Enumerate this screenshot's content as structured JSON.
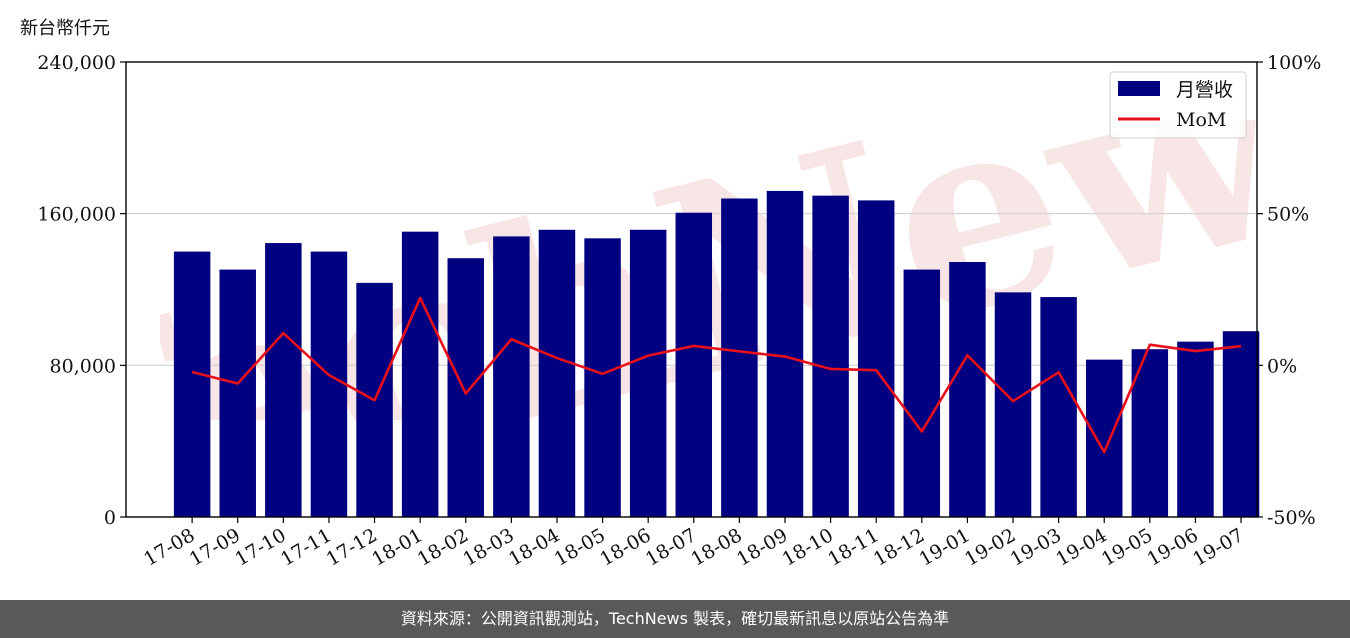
{
  "unit_label": "新台幣仟元",
  "footer_text": "資料來源：公開資訊觀測站，TechNews 製表，確切最新訊息以原站公告為準",
  "watermark_text": "TechNews",
  "colors": {
    "bar": "#000080",
    "line": "#e8101a",
    "grid": "#d0d0d0",
    "footer_bg": "#595959",
    "watermark": "#d04040"
  },
  "chart_data": {
    "type": "bar",
    "categories": [
      "17-08",
      "17-09",
      "17-10",
      "17-11",
      "17-12",
      "18-01",
      "18-02",
      "18-03",
      "18-04",
      "18-05",
      "18-06",
      "18-07",
      "18-08",
      "18-09",
      "18-10",
      "18-11",
      "18-12",
      "19-01",
      "19-02",
      "19-03",
      "19-04",
      "19-05",
      "19-06",
      "19-07"
    ],
    "series": [
      {
        "name": "月營收",
        "type": "bar",
        "axis": "left",
        "values": [
          140000,
          130500,
          144500,
          140000,
          123500,
          150500,
          136500,
          148000,
          151500,
          147000,
          151500,
          160500,
          168000,
          172000,
          169500,
          167000,
          130500,
          134500,
          118500,
          116000,
          83000,
          88500,
          92500,
          98000
        ]
      },
      {
        "name": "MoM",
        "type": "line",
        "axis": "right",
        "values": [
          -2.2,
          -6.0,
          10.6,
          -3.2,
          -11.5,
          22.2,
          -9.3,
          8.6,
          2.4,
          -2.8,
          3.2,
          6.4,
          4.6,
          2.9,
          -1.2,
          -1.6,
          -21.8,
          3.3,
          -11.8,
          -2.3,
          -28.6,
          6.8,
          4.7,
          6.3
        ]
      }
    ],
    "yleft": {
      "ticks": [
        "0",
        "80,000",
        "160,000",
        "240,000"
      ],
      "tick_values": [
        0,
        80000,
        160000,
        240000
      ],
      "ylim": [
        0,
        240000
      ]
    },
    "yright": {
      "ticks": [
        "-50%",
        "0%",
        "50%",
        "100%"
      ],
      "tick_values": [
        -50,
        0,
        50,
        100
      ],
      "ylim": [
        -50,
        100
      ]
    },
    "legend": {
      "position": "top-right",
      "entries": [
        "月營收",
        "MoM"
      ]
    },
    "grid": "horizontal"
  }
}
